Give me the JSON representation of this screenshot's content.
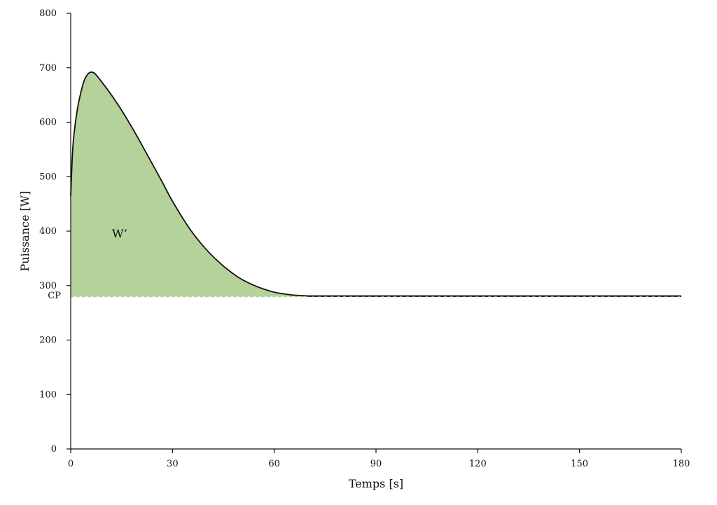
{
  "chart_data": {
    "type": "area",
    "xlabel": "Temps [s]",
    "ylabel": "Puissance [W]",
    "xlim": [
      0,
      180
    ],
    "ylim": [
      0,
      800
    ],
    "xticks": [
      0,
      30,
      60,
      90,
      120,
      150,
      180
    ],
    "yticks": [
      0,
      100,
      200,
      300,
      400,
      500,
      600,
      700,
      800
    ],
    "grid": false,
    "cp_value": 280,
    "cp_label": "CP",
    "area_label": "W’",
    "series": [
      {
        "x": [
          0,
          0.5,
          1,
          2,
          3,
          4,
          5,
          6,
          7,
          8,
          10,
          12,
          15,
          18,
          21,
          24,
          27,
          30,
          35,
          40,
          45,
          50,
          55,
          60,
          65,
          70,
          180
        ],
        "y": [
          465,
          540,
          580,
          625,
          655,
          677,
          688,
          692,
          690,
          683,
          667,
          650,
          622,
          591,
          558,
          524,
          490,
          455,
          405,
          366,
          336,
          313,
          298,
          288,
          283,
          281,
          281
        ]
      }
    ],
    "colors": {
      "fill": "#b5d29b",
      "line": "#111111",
      "cp_line": "#111111",
      "cp_dash_accent": "#b5d29b",
      "axis": "#111111"
    }
  }
}
